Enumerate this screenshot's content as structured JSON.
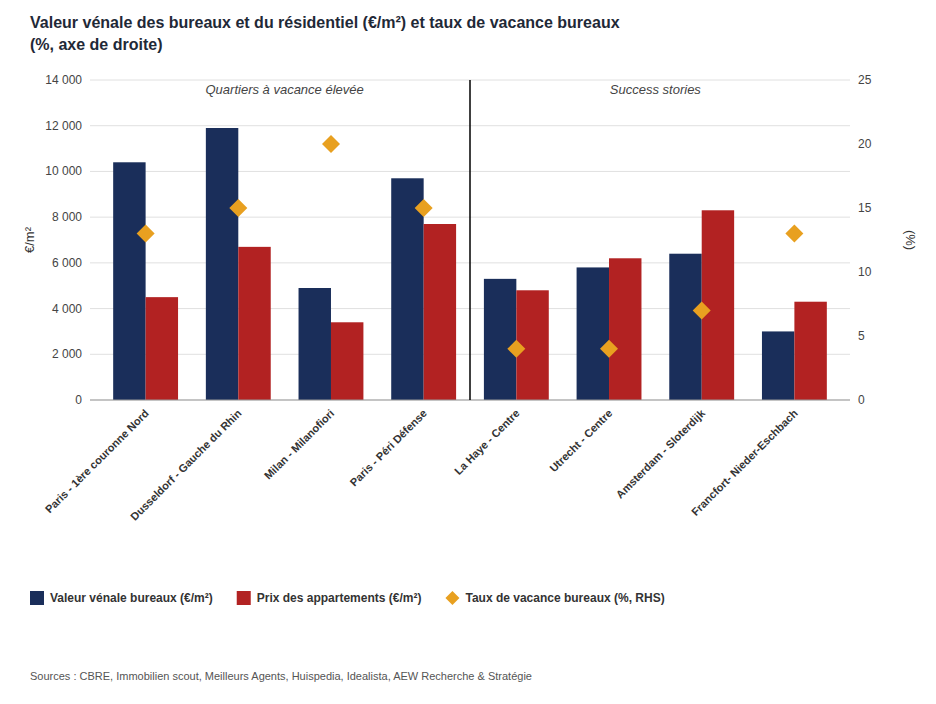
{
  "chart_data": {
    "type": "bar",
    "title": "Valeur vénale des bureaux et du résidentiel (€/m²) et taux de vacance bureaux",
    "subtitle": "(%, axe de droite)",
    "categories": [
      "Paris - 1ère couronne Nord",
      "Dusseldorf - Gauche du Rhin",
      "Milan - Milanofiori",
      "Paris - Péri Défense",
      "La Haye - Centre",
      "Utrecht - Centre",
      "Amsterdam - Sloterdijk",
      "Francfort- Nieder-Eschbach"
    ],
    "series": [
      {
        "name": "Valeur vénale bureaux (€/m²)",
        "color": "#1a2e5a",
        "values": [
          10400,
          11900,
          4900,
          9700,
          5300,
          5800,
          6400,
          3000
        ]
      },
      {
        "name": "Prix des appartements (€/m²)",
        "color": "#b22222",
        "values": [
          4500,
          6700,
          3400,
          7700,
          4800,
          6200,
          8300,
          4300
        ]
      },
      {
        "name": "Taux de vacance bureaux (%, RHS)",
        "color": "#e8a020",
        "values": [
          13,
          15,
          20,
          15,
          4,
          4,
          7,
          13
        ],
        "axis": "y2",
        "type": "scatter",
        "marker": "diamond"
      }
    ],
    "ylabel": "€/m²",
    "y2label": "(%)",
    "ylim": [
      0,
      14000
    ],
    "yticks": [
      0,
      {
        "value": 2000,
        "label": "2 000"
      },
      {
        "value": 4000,
        "label": "4 000"
      },
      {
        "value": 6000,
        "label": "6 000"
      },
      {
        "value": 8000,
        "label": "8 000"
      },
      {
        "value": 10000,
        "label": "10 000"
      },
      {
        "value": 12000,
        "label": "12 000"
      },
      {
        "value": 14000,
        "label": "14 000"
      }
    ],
    "y2lim": [
      0,
      25
    ],
    "y2ticks": [
      0,
      5,
      10,
      15,
      20,
      25
    ],
    "annotations": [
      {
        "text": "Quartiers à vacance élevée",
        "from": "Paris - 1ère couronne Nord",
        "to": "Paris - Péri Défense"
      },
      {
        "text": "Success stories",
        "from": "La Haye - Centre",
        "to": "Francfort- Nieder-Eschbach"
      }
    ],
    "source": "Sources : CBRE, Immobilien scout, Meilleurs Agents, Huispedia, Idealista, AEW Recherche & Stratégie",
    "grid": true,
    "legend": "bottom"
  }
}
